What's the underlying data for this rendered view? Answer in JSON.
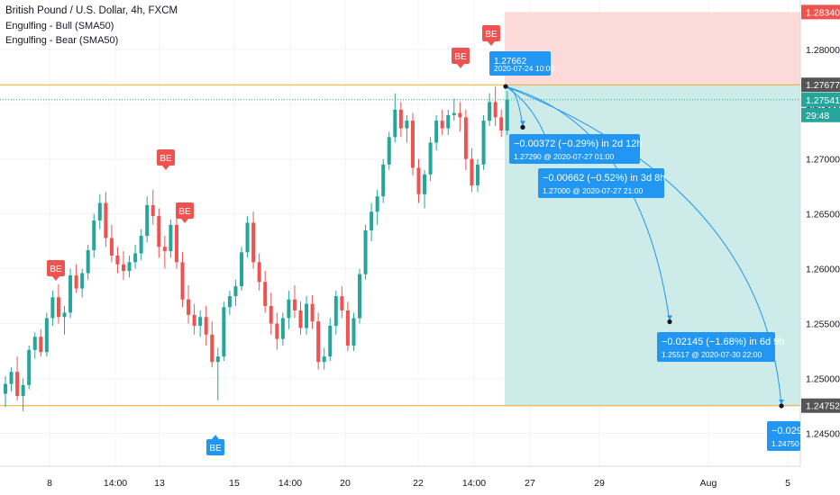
{
  "header": {
    "title": "British Pound / U.S. Dollar, 4h, FXCM",
    "indicators": [
      "Engulfing - Bull (SMA50)",
      "Engulfing - Bear (SMA50)"
    ]
  },
  "colors": {
    "up": "#26a69a",
    "down": "#ef5350",
    "level_line": "#f5a623",
    "projection_blue": "#2196f3",
    "target_zone": "#cdebe8",
    "stop_zone": "#fcdada",
    "grid": "#f0f3fa"
  },
  "price_scale": {
    "ticks": [
      "1.28000",
      "1.27500",
      "1.27000",
      "1.26500",
      "1.26000",
      "1.25500",
      "1.25000",
      "1.24500"
    ],
    "labels": [
      {
        "text": "1.28340",
        "bg": "#ef5350",
        "color": "#ffffff"
      },
      {
        "text": "1.27677",
        "bg": "#555555",
        "color": "#ffffff"
      },
      {
        "text": "1.27541",
        "bg": "#26a69a",
        "color": "#ffffff"
      },
      {
        "text": "29:48",
        "bg": "#26a69a",
        "color": "#ffffff"
      },
      {
        "text": "1.24752",
        "bg": "#555555",
        "color": "#ffffff"
      }
    ]
  },
  "time_axis": {
    "labels": [
      "8",
      "14:00",
      "13",
      "15",
      "14:00",
      "20",
      "22",
      "14:00",
      "27",
      "29",
      "Aug",
      "5"
    ]
  },
  "pattern_markers": [
    {
      "text": "BE",
      "kind": "bear"
    },
    {
      "text": "BE",
      "kind": "bear"
    },
    {
      "text": "BE",
      "kind": "bear"
    },
    {
      "text": "BE",
      "kind": "bear"
    },
    {
      "text": "BE",
      "kind": "bear"
    },
    {
      "text": "BE",
      "kind": "bull"
    }
  ],
  "projections": {
    "origin": {
      "price": "1.27662",
      "date": "2020-07-24 10:00"
    },
    "targets": [
      {
        "change": "−0.00372 (−0.29%) in 2d 12h",
        "detail": "1.27290 @ 2020-07-27  01:00"
      },
      {
        "change": "−0.00662 (−0.52%) in 3d 8h",
        "detail": "1.27000 @ 2020-07-27  21:00"
      },
      {
        "change": "−0.02145 (−1.68%) in 6d 9h",
        "detail": "1.25517 @ 2020-07-30  22:00"
      },
      {
        "change": "−0.029",
        "detail": "1.24750"
      }
    ]
  },
  "chart_data": {
    "type": "candlestick",
    "symbol": "British Pound / U.S. Dollar",
    "interval": "4h",
    "ylim": [
      1.242,
      1.2845
    ],
    "levels": {
      "stop": 1.2834,
      "entry": 1.27677,
      "last_price": 1.27541,
      "target": 1.24752
    },
    "candles": [
      [
        1.2486,
        1.2502,
        1.2474,
        1.2495
      ],
      [
        1.2495,
        1.251,
        1.2488,
        1.2506
      ],
      [
        1.2506,
        1.252,
        1.248,
        1.2484
      ],
      [
        1.2484,
        1.25,
        1.247,
        1.2494
      ],
      [
        1.2494,
        1.253,
        1.249,
        1.2526
      ],
      [
        1.2526,
        1.2542,
        1.2518,
        1.2538
      ],
      [
        1.2538,
        1.2545,
        1.252,
        1.2524
      ],
      [
        1.2524,
        1.256,
        1.252,
        1.2555
      ],
      [
        1.2555,
        1.258,
        1.2548,
        1.2574
      ],
      [
        1.2574,
        1.2586,
        1.255,
        1.2556
      ],
      [
        1.2556,
        1.2566,
        1.254,
        1.256
      ],
      [
        1.256,
        1.26,
        1.2555,
        1.2594
      ],
      [
        1.2594,
        1.2604,
        1.2578,
        1.2582
      ],
      [
        1.2582,
        1.26,
        1.2574,
        1.2596
      ],
      [
        1.2596,
        1.2622,
        1.259,
        1.2617
      ],
      [
        1.2617,
        1.265,
        1.261,
        1.2644
      ],
      [
        1.2644,
        1.2668,
        1.2636,
        1.266
      ],
      [
        1.266,
        1.267,
        1.262,
        1.2628
      ],
      [
        1.2628,
        1.264,
        1.2606,
        1.2612
      ],
      [
        1.2612,
        1.262,
        1.2596,
        1.2604
      ],
      [
        1.2604,
        1.2616,
        1.259,
        1.2598
      ],
      [
        1.2598,
        1.2612,
        1.2592,
        1.2606
      ],
      [
        1.2606,
        1.2622,
        1.26,
        1.2614
      ],
      [
        1.2614,
        1.2636,
        1.2608,
        1.263
      ],
      [
        1.263,
        1.2666,
        1.2624,
        1.2658
      ],
      [
        1.2658,
        1.2672,
        1.264,
        1.2648
      ],
      [
        1.2648,
        1.2655,
        1.261,
        1.262
      ],
      [
        1.262,
        1.263,
        1.26,
        1.2616
      ],
      [
        1.2616,
        1.2645,
        1.261,
        1.264
      ],
      [
        1.264,
        1.265,
        1.26,
        1.2606
      ],
      [
        1.2606,
        1.2615,
        1.2565,
        1.2572
      ],
      [
        1.2572,
        1.2585,
        1.255,
        1.2558
      ],
      [
        1.2558,
        1.2568,
        1.254,
        1.2548
      ],
      [
        1.2548,
        1.2562,
        1.2538,
        1.2556
      ],
      [
        1.2556,
        1.2566,
        1.253,
        1.254
      ],
      [
        1.254,
        1.2552,
        1.251,
        1.2515
      ],
      [
        1.2515,
        1.2528,
        1.248,
        1.252
      ],
      [
        1.252,
        1.257,
        1.2516,
        1.2565
      ],
      [
        1.2565,
        1.258,
        1.2558,
        1.2575
      ],
      [
        1.2575,
        1.259,
        1.2566,
        1.2584
      ],
      [
        1.2584,
        1.262,
        1.258,
        1.2615
      ],
      [
        1.2615,
        1.2648,
        1.261,
        1.2642
      ],
      [
        1.2642,
        1.2652,
        1.26,
        1.2606
      ],
      [
        1.2606,
        1.2614,
        1.258,
        1.2588
      ],
      [
        1.2588,
        1.2598,
        1.256,
        1.2566
      ],
      [
        1.2566,
        1.2578,
        1.254,
        1.255
      ],
      [
        1.255,
        1.256,
        1.2526,
        1.2536
      ],
      [
        1.2536,
        1.256,
        1.253,
        1.2555
      ],
      [
        1.2555,
        1.258,
        1.2545,
        1.2572
      ],
      [
        1.2572,
        1.2585,
        1.2555,
        1.2562
      ],
      [
        1.2562,
        1.257,
        1.254,
        1.2546
      ],
      [
        1.2546,
        1.2575,
        1.254,
        1.2568
      ],
      [
        1.2568,
        1.2576,
        1.2545,
        1.2552
      ],
      [
        1.2552,
        1.256,
        1.2508,
        1.2515
      ],
      [
        1.2515,
        1.2528,
        1.2508,
        1.252
      ],
      [
        1.252,
        1.2555,
        1.2516,
        1.2548
      ],
      [
        1.2548,
        1.258,
        1.254,
        1.2575
      ],
      [
        1.2575,
        1.2584,
        1.2555,
        1.2562
      ],
      [
        1.2562,
        1.257,
        1.2525,
        1.253
      ],
      [
        1.253,
        1.256,
        1.2525,
        1.2555
      ],
      [
        1.2555,
        1.26,
        1.255,
        1.2595
      ],
      [
        1.2595,
        1.264,
        1.259,
        1.2635
      ],
      [
        1.2635,
        1.266,
        1.2625,
        1.2652
      ],
      [
        1.2652,
        1.2672,
        1.264,
        1.2666
      ],
      [
        1.2666,
        1.27,
        1.266,
        1.2695
      ],
      [
        1.2695,
        1.2725,
        1.269,
        1.272
      ],
      [
        1.272,
        1.276,
        1.2715,
        1.2745
      ],
      [
        1.2745,
        1.2752,
        1.272,
        1.2728
      ],
      [
        1.2728,
        1.274,
        1.2715,
        1.2735
      ],
      [
        1.2735,
        1.2742,
        1.2685,
        1.2692
      ],
      [
        1.2692,
        1.27,
        1.266,
        1.2668
      ],
      [
        1.2668,
        1.269,
        1.2655,
        1.2686
      ],
      [
        1.2686,
        1.272,
        1.268,
        1.2715
      ],
      [
        1.2715,
        1.274,
        1.2708,
        1.2735
      ],
      [
        1.2735,
        1.2745,
        1.2722,
        1.2728
      ],
      [
        1.2728,
        1.2745,
        1.2722,
        1.274
      ],
      [
        1.274,
        1.2755,
        1.2735,
        1.2742
      ],
      [
        1.2742,
        1.2752,
        1.2725,
        1.2738
      ],
      [
        1.2738,
        1.2745,
        1.269,
        1.27
      ],
      [
        1.27,
        1.271,
        1.267,
        1.2676
      ],
      [
        1.2676,
        1.27,
        1.267,
        1.2695
      ],
      [
        1.2695,
        1.274,
        1.269,
        1.2735
      ],
      [
        1.2735,
        1.276,
        1.273,
        1.2752
      ],
      [
        1.2752,
        1.2766,
        1.273,
        1.2738
      ],
      [
        1.2738,
        1.2745,
        1.272,
        1.2726
      ],
      [
        1.2726,
        1.2762,
        1.2722,
        1.2754
      ]
    ],
    "pattern_markers": [
      {
        "type": "bearish engulfing",
        "label": "BE"
      },
      {
        "type": "bearish engulfing",
        "label": "BE"
      },
      {
        "type": "bearish engulfing",
        "label": "BE"
      },
      {
        "type": "bearish engulfing",
        "label": "BE"
      },
      {
        "type": "bearish engulfing",
        "label": "BE"
      },
      {
        "type": "bullish engulfing",
        "label": "BE"
      }
    ],
    "projection": {
      "origin": {
        "price": 1.27662,
        "time": "2020-07-24 10:00"
      },
      "targets": [
        {
          "price": 1.2729,
          "time": "2020-07-27 01:00",
          "change": -0.00372,
          "change_pct": -0.29,
          "duration": "2d 12h"
        },
        {
          "price": 1.27,
          "time": "2020-07-27 21:00",
          "change": -0.00662,
          "change_pct": -0.52,
          "duration": "3d 8h"
        },
        {
          "price": 1.25517,
          "time": "2020-07-30 22:00",
          "change": -0.02145,
          "change_pct": -1.68,
          "duration": "6d 9h"
        },
        {
          "price": 1.2475
        }
      ]
    },
    "grid": true
  }
}
